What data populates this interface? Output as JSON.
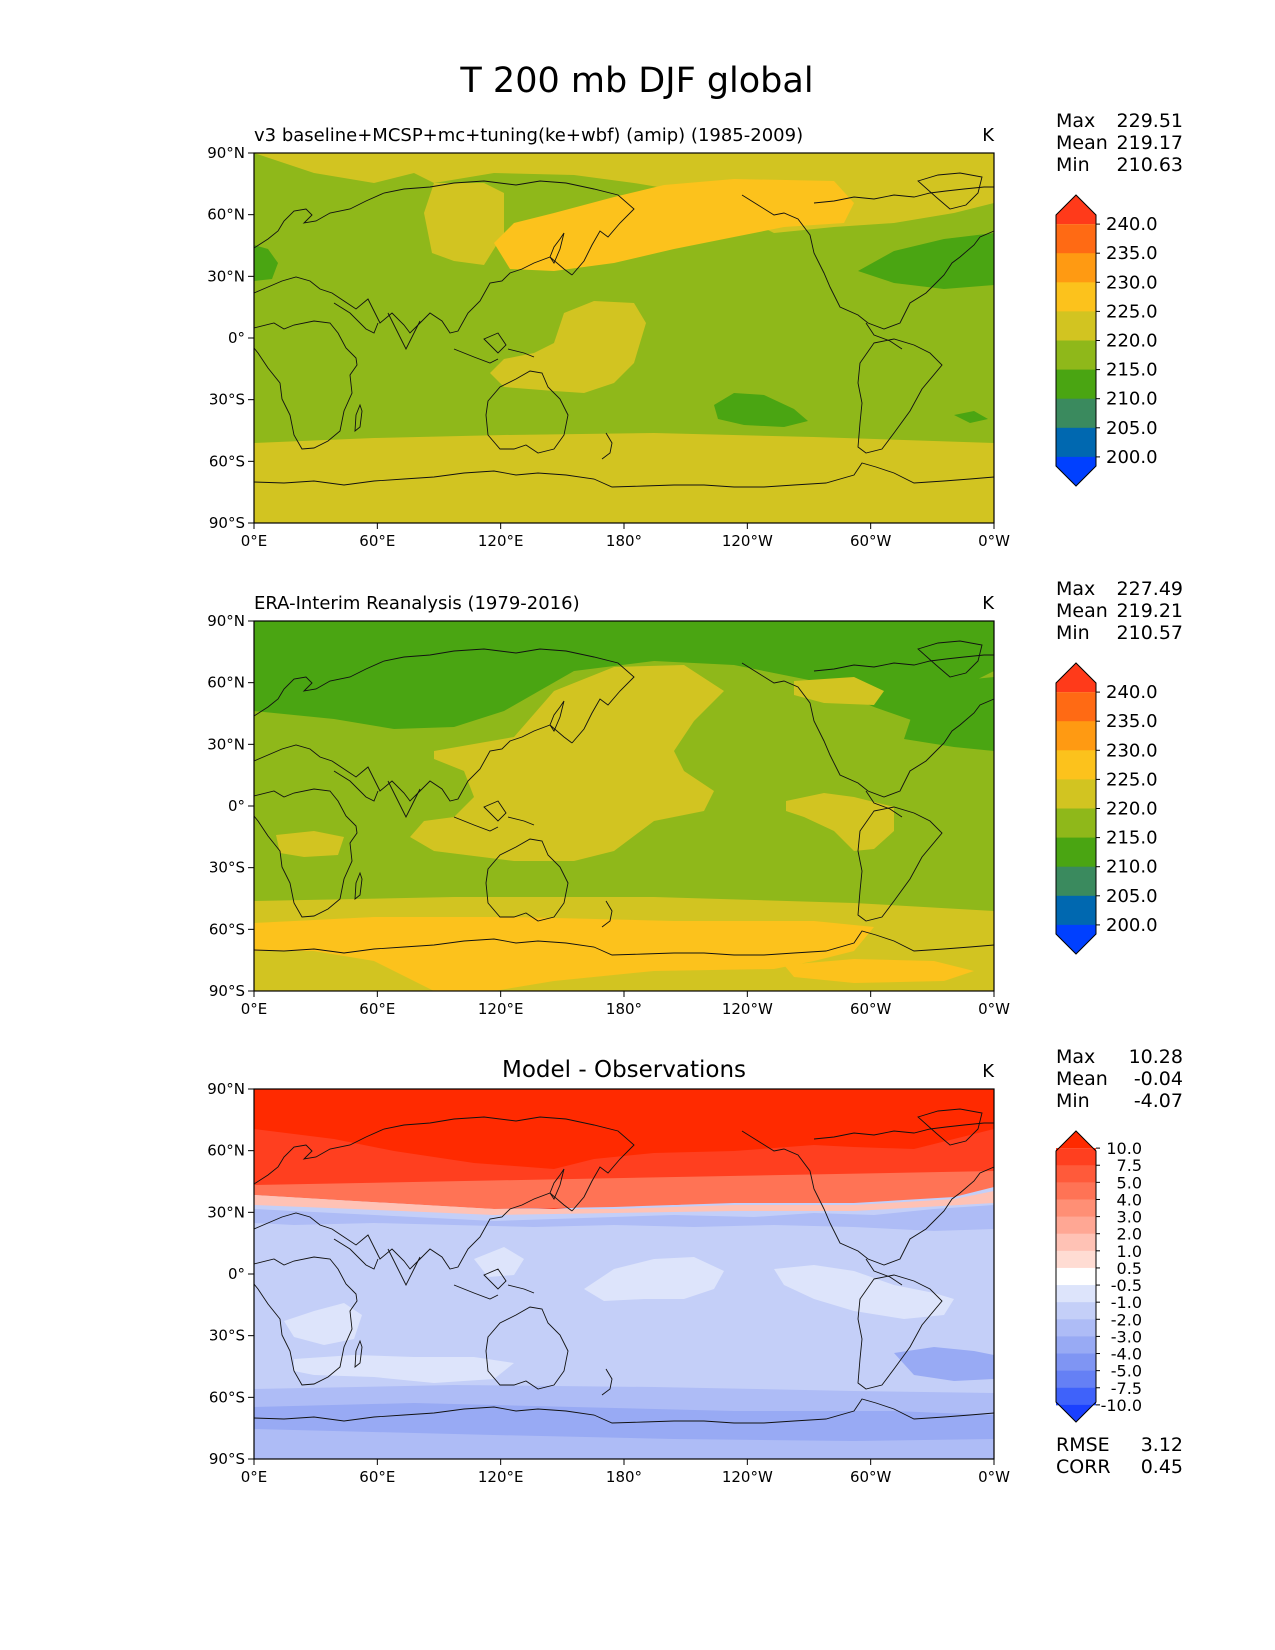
{
  "main_title": "T 200 mb DJF global",
  "lat_labels": [
    "90°N",
    "60°N",
    "30°N",
    "0°",
    "30°S",
    "60°S",
    "90°S"
  ],
  "lon_labels": [
    "0°E",
    "60°E",
    "120°E",
    "180°",
    "120°W",
    "60°W",
    "0°W"
  ],
  "panels": [
    {
      "title": "v3 baseline+MCSP+mc+tuning(ke+wbf) (amip) (1985-2009)",
      "title_style": "left",
      "units": "K",
      "stats": {
        "max_label": "Max",
        "max": "229.51",
        "mean_label": "Mean",
        "mean": "219.17",
        "min_label": "Min",
        "min": "210.63"
      },
      "colorbar": {
        "levels": [
          "240.0",
          "235.0",
          "230.0",
          "225.0",
          "220.0",
          "215.0",
          "210.0",
          "205.0",
          "200.0"
        ],
        "colors": [
          "#ff3a1a",
          "#ff6a14",
          "#ff9a12",
          "#fcc21c",
          "#d2c421",
          "#8fb81a",
          "#4aa512",
          "#3a8a5e",
          "#0068b0",
          "#0040ff"
        ]
      }
    },
    {
      "title": "ERA-Interim Reanalysis (1979-2016)",
      "title_style": "left",
      "units": "K",
      "stats": {
        "max_label": "Max",
        "max": "227.49",
        "mean_label": "Mean",
        "mean": "219.21",
        "min_label": "Min",
        "min": "210.57"
      },
      "colorbar": {
        "levels": [
          "240.0",
          "235.0",
          "230.0",
          "225.0",
          "220.0",
          "215.0",
          "210.0",
          "205.0",
          "200.0"
        ],
        "colors": [
          "#ff3a1a",
          "#ff6a14",
          "#ff9a12",
          "#fcc21c",
          "#d2c421",
          "#8fb81a",
          "#4aa512",
          "#3a8a5e",
          "#0068b0",
          "#0040ff"
        ]
      }
    },
    {
      "title": "Model - Observations",
      "title_style": "center",
      "units": "K",
      "stats": {
        "max_label": "Max",
        "max": "10.28",
        "mean_label": "Mean",
        "mean": "-0.04",
        "min_label": "Min",
        "min": "-4.07"
      },
      "colorbar": {
        "levels": [
          "10.0",
          "7.5",
          "5.0",
          "4.0",
          "3.0",
          "2.0",
          "1.0",
          "0.5",
          "-0.5",
          "-1.0",
          "-2.0",
          "-3.0",
          "-4.0",
          "-5.0",
          "-7.5",
          "-10.0"
        ],
        "colors": [
          "#ff2a00",
          "#ff3f1f",
          "#ff5a3a",
          "#ff7355",
          "#ff8f75",
          "#ffa794",
          "#ffc2b5",
          "#ffdcd3",
          "#ffffff",
          "#dde4fb",
          "#c4cff8",
          "#aebcf6",
          "#98aaf4",
          "#7f95f3",
          "#6580f5",
          "#3f62fa",
          "#1a40ff"
        ]
      },
      "metrics": {
        "rmse_label": "RMSE",
        "rmse": "3.12",
        "corr_label": "CORR",
        "corr": "0.45"
      }
    }
  ]
}
